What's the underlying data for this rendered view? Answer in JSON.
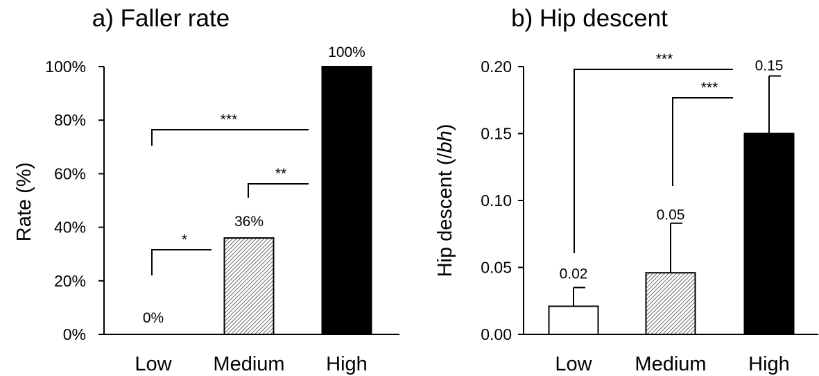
{
  "chart_data": [
    {
      "type": "bar",
      "title": "a) Faller rate",
      "ylabel": "Rate (%)",
      "xlabel": "",
      "categories": [
        "Low",
        "Medium",
        "High"
      ],
      "values": [
        0,
        36,
        100
      ],
      "data_labels": [
        "0%",
        "36%",
        "100%"
      ],
      "bar_styles": [
        "white",
        "hatched",
        "black"
      ],
      "ylim": [
        0,
        100
      ],
      "y_ticks": [
        0,
        20,
        40,
        60,
        80,
        100
      ],
      "y_tick_labels": [
        "0%",
        "20%",
        "40%",
        "60%",
        "80%",
        "100%"
      ],
      "grid": false,
      "significance": [
        {
          "from": "Low",
          "to": "Medium",
          "label": "*"
        },
        {
          "from": "Medium",
          "to": "High",
          "label": "**"
        },
        {
          "from": "Low",
          "to": "High",
          "label": "***"
        }
      ]
    },
    {
      "type": "bar",
      "title": "b) Hip descent",
      "ylabel": "Hip descent (/bh)",
      "ylabel_plain": "Hip descent (/",
      "ylabel_italic": "bh",
      "ylabel_close": ")",
      "xlabel": "",
      "categories": [
        "Low",
        "Medium",
        "High"
      ],
      "values": [
        0.021,
        0.046,
        0.15
      ],
      "errors": [
        0.014,
        0.037,
        0.043
      ],
      "data_labels": [
        "0.02",
        "0.05",
        "0.15"
      ],
      "bar_styles": [
        "white",
        "hatched",
        "black"
      ],
      "ylim": [
        0,
        0.2
      ],
      "y_ticks": [
        0,
        0.05,
        0.1,
        0.15,
        0.2
      ],
      "y_tick_labels": [
        "0.00",
        "0.05",
        "0.10",
        "0.15",
        "0.20"
      ],
      "grid": false,
      "significance": [
        {
          "from": "Medium",
          "to": "High",
          "label": "***"
        },
        {
          "from": "Low",
          "to": "High",
          "label": "***"
        }
      ]
    }
  ]
}
